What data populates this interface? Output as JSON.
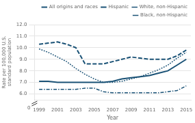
{
  "chart_data": {
    "type": "line",
    "xlabel": "Year",
    "ylabel": "Rate per 100,000 U.S. standard population",
    "x": [
      1999,
      2000,
      2001,
      2002,
      2003,
      2004,
      2005,
      2006,
      2007,
      2008,
      2009,
      2010,
      2011,
      2012,
      2013,
      2014,
      2015
    ],
    "series": [
      {
        "name": "All origins and races",
        "color": "#1a5276",
        "line_style": "solid",
        "values": [
          7.1,
          7.1,
          7.0,
          7.0,
          7.0,
          7.0,
          7.0,
          7.0,
          7.1,
          7.3,
          7.4,
          7.5,
          7.6,
          7.8,
          8.0,
          8.5,
          9.0
        ]
      },
      {
        "name": "Hispanic",
        "color": "#1a5276",
        "line_style": "dashed",
        "values": [
          10.3,
          10.4,
          10.5,
          10.3,
          10.0,
          8.6,
          8.6,
          8.6,
          8.8,
          9.0,
          9.2,
          9.1,
          9.0,
          9.0,
          9.0,
          9.3,
          9.8
        ]
      },
      {
        "name": "White, non-Hispanic",
        "color": "#1a5276",
        "line_style": "dotted",
        "values": [
          9.9,
          9.6,
          9.2,
          8.8,
          8.2,
          7.7,
          7.3,
          7.0,
          7.0,
          7.1,
          7.3,
          7.5,
          7.8,
          8.1,
          8.5,
          9.1,
          9.6
        ]
      },
      {
        "name": "Black, non-Hispanic",
        "color": "#1a5276",
        "line_style": "dashdot",
        "values": [
          6.4,
          6.4,
          6.4,
          6.4,
          6.4,
          6.5,
          6.5,
          6.2,
          6.1,
          6.1,
          6.1,
          6.1,
          6.1,
          6.1,
          6.2,
          6.3,
          6.7
        ]
      }
    ],
    "xlim": [
      1998.5,
      2015.5
    ],
    "xticks": [
      1999,
      2001,
      2003,
      2005,
      2007,
      2009,
      2011,
      2013,
      2015
    ],
    "ylim": [
      5.5,
      12.0
    ],
    "yticks": [
      {
        "value": 6.0,
        "label": "6.0"
      },
      {
        "value": 7.0,
        "label": "7.0"
      },
      {
        "value": 8.0,
        "label": "8.0"
      },
      {
        "value": 9.0,
        "label": "9.0"
      },
      {
        "value": 10.0,
        "label": "10.0"
      },
      {
        "value": 11.0,
        "label": "11.0"
      },
      {
        "value": 12.0,
        "label": "12.0"
      }
    ],
    "grid": "y",
    "legend": "upper right",
    "annotations": [
      {
        "text": "0"
      }
    ]
  }
}
